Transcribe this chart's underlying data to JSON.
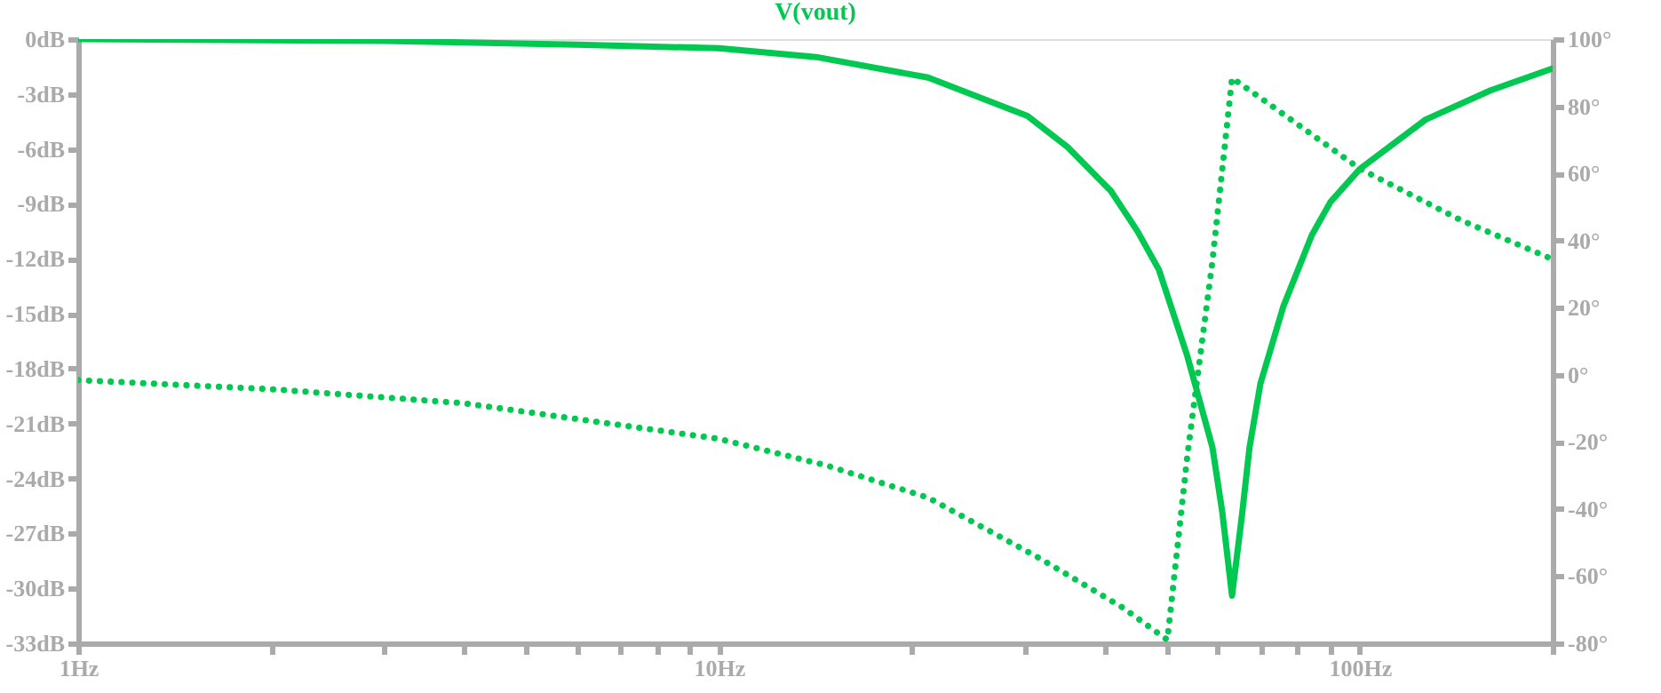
{
  "chart_data": {
    "type": "line",
    "title": "V(vout)",
    "log": "x",
    "grid": false,
    "xlim": [
      1,
      200
    ],
    "xticks": [
      {
        "value": 1,
        "label": "1Hz"
      },
      {
        "value": 2,
        "label": null
      },
      {
        "value": 3,
        "label": null
      },
      {
        "value": 4,
        "label": null
      },
      {
        "value": 5,
        "label": null
      },
      {
        "value": 6,
        "label": null
      },
      {
        "value": 7,
        "label": null
      },
      {
        "value": 8,
        "label": null
      },
      {
        "value": 9,
        "label": null
      },
      {
        "value": 10,
        "label": "10Hz"
      },
      {
        "value": 20,
        "label": null
      },
      {
        "value": 30,
        "label": null
      },
      {
        "value": 40,
        "label": null
      },
      {
        "value": 50,
        "label": null
      },
      {
        "value": 60,
        "label": null
      },
      {
        "value": 70,
        "label": null
      },
      {
        "value": 80,
        "label": null
      },
      {
        "value": 90,
        "label": null
      },
      {
        "value": 100,
        "label": "100Hz"
      },
      {
        "value": 200,
        "label": null
      }
    ],
    "ylim": [
      -33,
      0
    ],
    "yticks": [
      {
        "value": 0,
        "label": "0dB"
      },
      {
        "value": -3,
        "label": "-3dB"
      },
      {
        "value": -6,
        "label": "-6dB"
      },
      {
        "value": -9,
        "label": "-9dB"
      },
      {
        "value": -12,
        "label": "-12dB"
      },
      {
        "value": -15,
        "label": "-15dB"
      },
      {
        "value": -18,
        "label": "-18dB"
      },
      {
        "value": -21,
        "label": "-21dB"
      },
      {
        "value": -24,
        "label": "-24dB"
      },
      {
        "value": -27,
        "label": "-27dB"
      },
      {
        "value": -30,
        "label": "-30dB"
      },
      {
        "value": -33,
        "label": "-33dB"
      }
    ],
    "y2lim": [
      -80,
      100
    ],
    "y2ticks": [
      {
        "value": 100,
        "label": "100°"
      },
      {
        "value": 80,
        "label": "80°"
      },
      {
        "value": 60,
        "label": "60°"
      },
      {
        "value": 40,
        "label": "40°"
      },
      {
        "value": 20,
        "label": "20°"
      },
      {
        "value": 0,
        "label": "0°"
      },
      {
        "value": -20,
        "label": "-20°"
      },
      {
        "value": -40,
        "label": "-40°"
      },
      {
        "value": -60,
        "label": "-60°"
      },
      {
        "value": -80,
        "label": "-80°"
      }
    ],
    "series": [
      {
        "color": "#00c850",
        "line_style": "solid",
        "x": [
          1,
          3,
          6,
          10,
          14.3,
          21.2,
          30.3,
          35,
          40.9,
          45,
          48.6,
          53.8,
          58.9,
          61,
          63.2,
          65.5,
          67.3,
          70,
          76,
          84.2,
          90,
          100,
          126.7,
          160,
          200
        ],
        "values": [
          0,
          -0.1,
          -0.3,
          -0.5,
          -1.0,
          -2.1,
          -4.2,
          -5.9,
          -8.3,
          -10.5,
          -12.6,
          -17.3,
          -22.3,
          -25.8,
          -30.4,
          -26,
          -22.3,
          -18.8,
          -14.6,
          -10.7,
          -8.9,
          -7.1,
          -4.4,
          -2.8,
          -1.6
        ]
      },
      {
        "color": "#00c850",
        "line_style": "dotted",
        "axis": "y2",
        "x": [
          1,
          2,
          4,
          10,
          14.7,
          21.2,
          31.6,
          42.7,
          50.1,
          53.8,
          58.9,
          63.2,
          71.8,
          100,
          144,
          200
        ],
        "values": [
          -1.6,
          -4.3,
          -8.5,
          -19.1,
          -27,
          -36.6,
          -54.6,
          -69.4,
          -79,
          -24.4,
          33.8,
          88.4,
          81,
          61.4,
          46,
          34.4
        ]
      }
    ]
  }
}
